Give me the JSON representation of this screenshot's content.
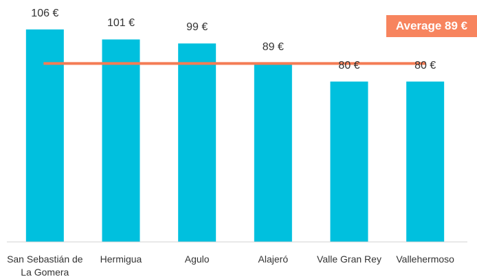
{
  "chart_data": {
    "type": "bar",
    "categories": [
      "San Sebastián de La Gomera",
      "Hermigua",
      "Agulo",
      "Alajeró",
      "Valle Gran Rey",
      "Vallehermoso"
    ],
    "values": [
      106,
      101,
      99,
      89,
      80,
      80
    ],
    "value_labels": [
      "106 €",
      "101 €",
      "99 €",
      "89 €",
      "80 €",
      "80 €"
    ],
    "color": "#00c0de",
    "ylim": [
      0,
      120
    ],
    "average": {
      "value": 89,
      "label": "Average 89 €",
      "color": "#f47c55"
    }
  }
}
